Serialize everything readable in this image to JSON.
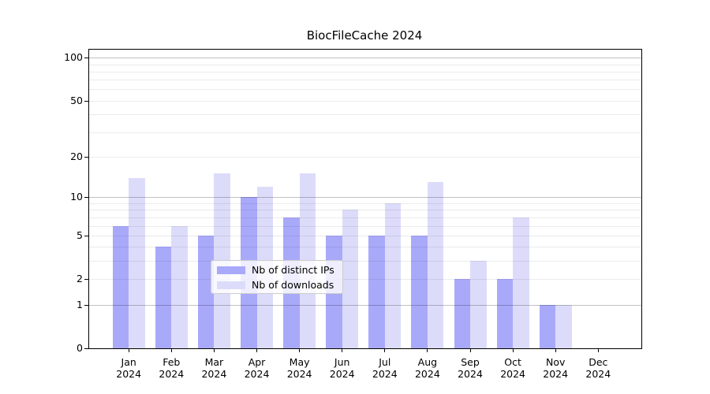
{
  "chart_data": {
    "type": "bar",
    "title": "BiocFileCache 2024",
    "categories": [
      "Jan",
      "Feb",
      "Mar",
      "Apr",
      "May",
      "Jun",
      "Jul",
      "Aug",
      "Sep",
      "Oct",
      "Nov",
      "Dec"
    ],
    "x_year_label": "2024",
    "series": [
      {
        "name": "Nb of distinct IPs",
        "color": "#a9a9fa",
        "values": [
          6,
          4,
          5,
          10,
          7,
          5,
          5,
          5,
          2,
          2,
          1,
          0
        ]
      },
      {
        "name": "Nb of downloads",
        "color": "#dcdcfa",
        "values": [
          14,
          6,
          15,
          12,
          15,
          8,
          9,
          13,
          3,
          7,
          1,
          0
        ]
      }
    ],
    "y_axis": {
      "scale": "log10(1+value)",
      "tick_labels": [
        "100",
        "50",
        "20",
        "10",
        "5",
        "2",
        "1",
        "0"
      ],
      "tick_values": [
        100,
        50,
        20,
        10,
        5,
        2,
        1,
        0
      ],
      "major_gridlines": [
        1,
        10,
        100
      ],
      "minor_gridlines": [
        2,
        3,
        4,
        5,
        6,
        7,
        8,
        9,
        20,
        30,
        40,
        50,
        60,
        70,
        80,
        90
      ],
      "ylim": [
        0,
        116
      ]
    },
    "xlabel": "",
    "ylabel": "",
    "grid": true,
    "legend_position": "lower center"
  }
}
